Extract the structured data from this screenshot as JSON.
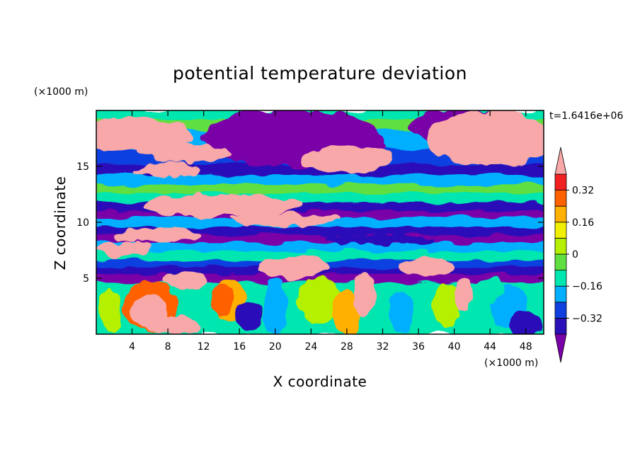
{
  "chart_data": {
    "type": "heatmap",
    "title": "potential temperature deviation",
    "xlabel": "X coordinate",
    "ylabel": "Z coordinate",
    "x_unit": "(×1000 m)",
    "y_unit": "(×1000 m)",
    "time_label": "t=1.6416e+06",
    "xlim": [
      0,
      50
    ],
    "ylim": [
      0,
      20
    ],
    "x_ticks": [
      4,
      8,
      12,
      16,
      20,
      24,
      28,
      32,
      36,
      40,
      44,
      48
    ],
    "y_ticks": [
      5,
      10,
      15
    ],
    "colorbar": {
      "levels": [
        -0.4,
        -0.32,
        -0.24,
        -0.16,
        -0.08,
        0,
        0.08,
        0.16,
        0.24,
        0.32,
        0.4
      ],
      "labels": [
        "-0.32",
        "-0.16",
        "0",
        "0.16",
        "0.32"
      ],
      "label_values": [
        -0.32,
        -0.16,
        0,
        0.16,
        0.32
      ],
      "colors": [
        "#7a00a8",
        "#2a10b8",
        "#1040e0",
        "#00b0ff",
        "#00e6b0",
        "#60e040",
        "#b4f000",
        "#f0f000",
        "#ffb000",
        "#ff6000",
        "#f02020",
        "#f8a8a8"
      ]
    }
  }
}
